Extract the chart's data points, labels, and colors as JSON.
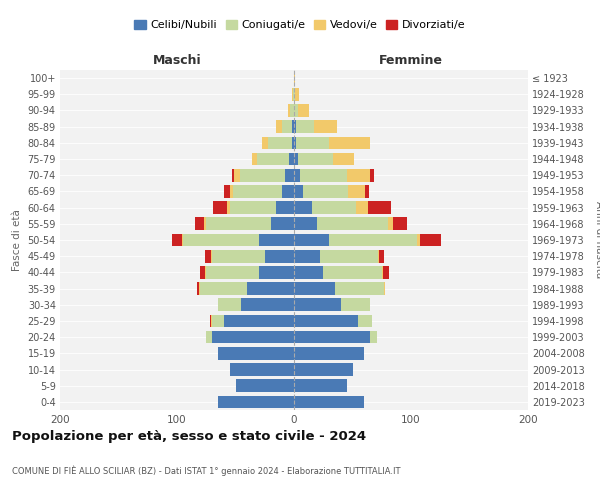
{
  "age_groups": [
    "0-4",
    "5-9",
    "10-14",
    "15-19",
    "20-24",
    "25-29",
    "30-34",
    "35-39",
    "40-44",
    "45-49",
    "50-54",
    "55-59",
    "60-64",
    "65-69",
    "70-74",
    "75-79",
    "80-84",
    "85-89",
    "90-94",
    "95-99",
    "100+"
  ],
  "birth_years": [
    "2019-2023",
    "2014-2018",
    "2009-2013",
    "2004-2008",
    "1999-2003",
    "1994-1998",
    "1989-1993",
    "1984-1988",
    "1979-1983",
    "1974-1978",
    "1969-1973",
    "1964-1968",
    "1959-1963",
    "1954-1958",
    "1949-1953",
    "1944-1948",
    "1939-1943",
    "1934-1938",
    "1929-1933",
    "1924-1928",
    "≤ 1923"
  ],
  "colors": {
    "celibi": "#4a7ab5",
    "coniugati": "#c5d9a0",
    "vedovi": "#f2c96a",
    "divorziati": "#cc2222"
  },
  "maschi": {
    "celibi": [
      65,
      50,
      55,
      65,
      70,
      60,
      45,
      40,
      30,
      25,
      30,
      20,
      15,
      10,
      8,
      4,
      2,
      2,
      0,
      0,
      0
    ],
    "coniugati": [
      0,
      0,
      0,
      0,
      5,
      10,
      20,
      40,
      45,
      45,
      65,
      55,
      40,
      42,
      38,
      28,
      20,
      8,
      3,
      1,
      0
    ],
    "vedovi": [
      0,
      0,
      0,
      0,
      0,
      1,
      0,
      1,
      1,
      1,
      1,
      2,
      2,
      3,
      5,
      4,
      5,
      5,
      2,
      1,
      0
    ],
    "divorziati": [
      0,
      0,
      0,
      0,
      0,
      1,
      0,
      2,
      4,
      5,
      8,
      8,
      12,
      5,
      2,
      0,
      0,
      0,
      0,
      0,
      0
    ]
  },
  "femmine": {
    "celibi": [
      60,
      45,
      50,
      60,
      65,
      55,
      40,
      35,
      25,
      22,
      30,
      20,
      15,
      8,
      5,
      3,
      2,
      2,
      0,
      0,
      0
    ],
    "coniugati": [
      0,
      0,
      0,
      0,
      6,
      12,
      25,
      42,
      50,
      50,
      75,
      60,
      38,
      38,
      40,
      30,
      28,
      15,
      3,
      1,
      0
    ],
    "vedovi": [
      0,
      0,
      0,
      0,
      0,
      0,
      0,
      1,
      1,
      1,
      3,
      5,
      10,
      15,
      20,
      18,
      35,
      20,
      10,
      3,
      1
    ],
    "divorziati": [
      0,
      0,
      0,
      0,
      0,
      0,
      0,
      0,
      5,
      4,
      18,
      12,
      20,
      3,
      3,
      0,
      0,
      0,
      0,
      0,
      0
    ]
  },
  "xlim": [
    -200,
    200
  ],
  "xticks": [
    -200,
    -100,
    0,
    100,
    200
  ],
  "xticklabels": [
    "200",
    "100",
    "0",
    "100",
    "200"
  ],
  "title": "Popolazione per età, sesso e stato civile - 2024",
  "subtitle": "COMUNE DI FIÈ ALLO SCILIAR (BZ) - Dati ISTAT 1° gennaio 2024 - Elaborazione TUTTITALIA.IT",
  "ylabel_left": "Fasce di età",
  "ylabel_right": "Anni di nascita",
  "label_maschi": "Maschi",
  "label_femmine": "Femmine",
  "legend_labels": [
    "Celibi/Nubili",
    "Coniugati/e",
    "Vedovi/e",
    "Divorziati/e"
  ],
  "background_color": "#f2f2f2"
}
